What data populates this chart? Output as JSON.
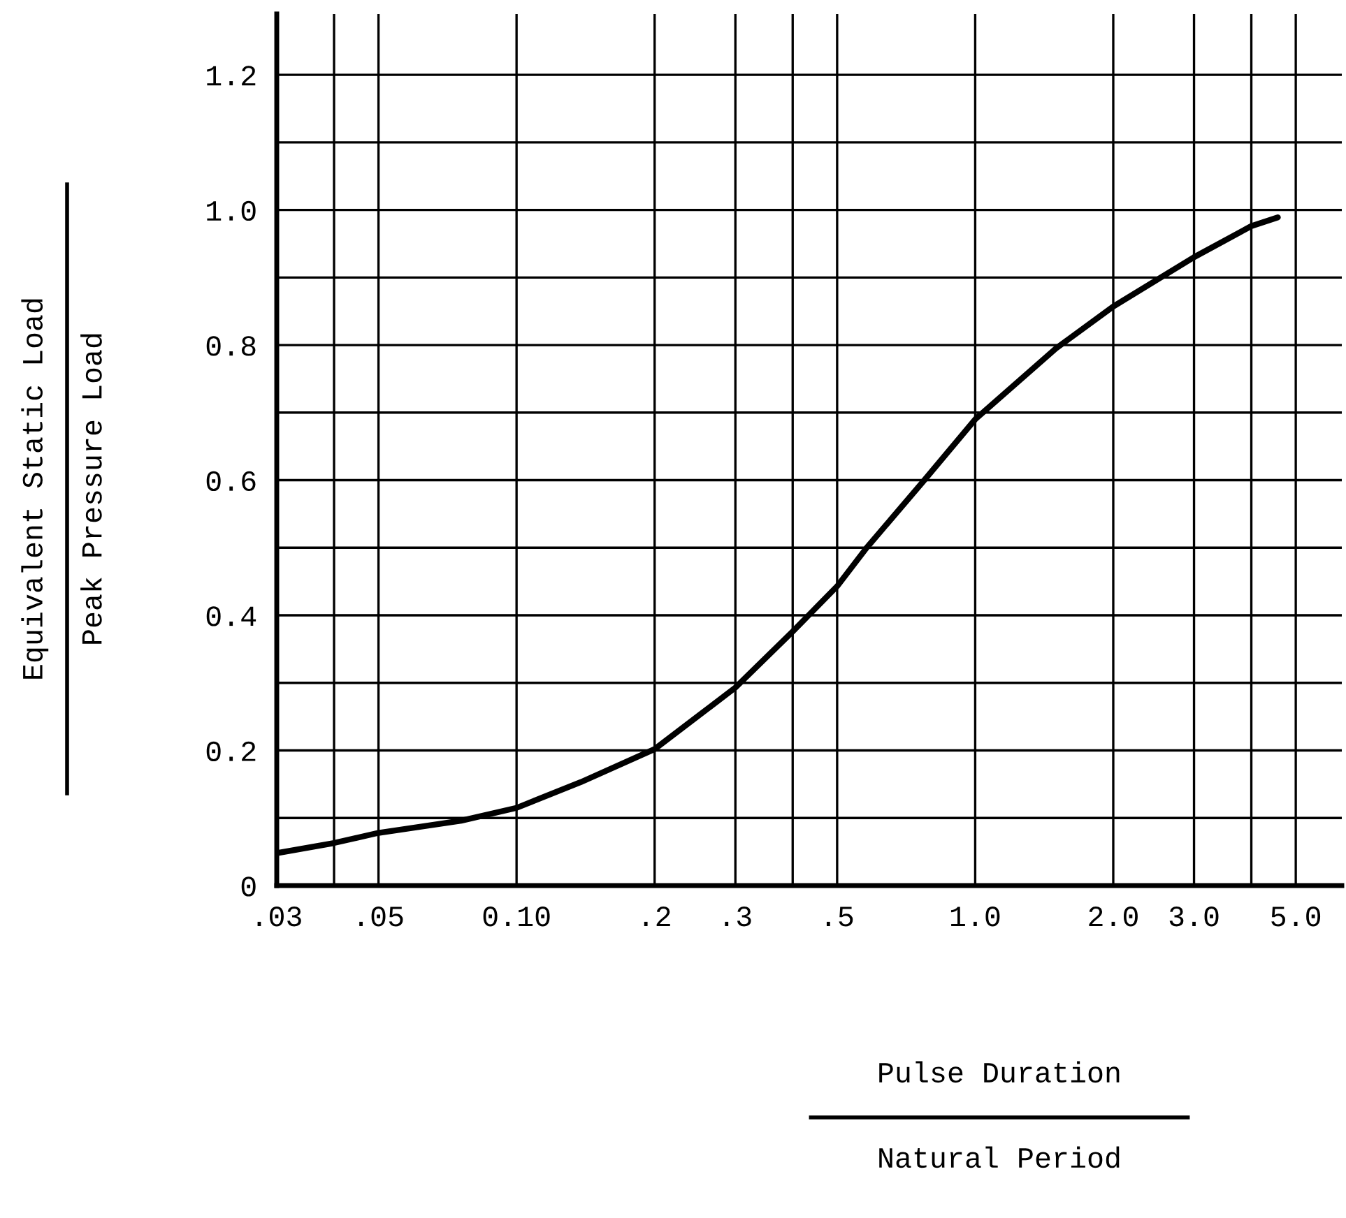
{
  "chart_data": {
    "type": "line",
    "xlabel": "Pulse Duration\nNatural Period",
    "ylabel": "Equivalent Static Load\nPeak Pressure Load",
    "log": "x",
    "x": [
      0.03,
      0.04,
      0.05,
      0.0757,
      0.1,
      0.138,
      0.2,
      0.3,
      0.4,
      0.5,
      0.58,
      0.77,
      1.0,
      1.5,
      2.0,
      3.0,
      4.0,
      4.57
    ],
    "series": [
      {
        "color": "#000000",
        "values": [
          0.048,
          0.063,
          0.078,
          0.096,
          0.115,
          0.153,
          0.202,
          0.293,
          0.376,
          0.443,
          0.5,
          0.598,
          0.69,
          0.795,
          0.857,
          0.93,
          0.976,
          0.989
        ]
      }
    ],
    "xlim": [
      0.03,
      6.3
    ],
    "ylim": [
      0,
      1.29
    ],
    "xticks": [
      {
        "value": 0.03,
        "label": ".03"
      },
      {
        "value": 0.04,
        "label": null
      },
      {
        "value": 0.05,
        "label": ".05"
      },
      {
        "value": 0.1,
        "label": "0.10"
      },
      {
        "value": 0.2,
        "label": ".2"
      },
      {
        "value": 0.3,
        "label": ".3"
      },
      {
        "value": 0.4,
        "label": null
      },
      {
        "value": 0.5,
        "label": ".5"
      },
      {
        "value": 1.0,
        "label": "1.0"
      },
      {
        "value": 2.0,
        "label": "2.0"
      },
      {
        "value": 3.0,
        "label": "3.0"
      },
      {
        "value": 4.0,
        "label": null
      },
      {
        "value": 5.0,
        "label": "5.0"
      }
    ],
    "yticks": [
      0,
      {
        "value": 0.1,
        "label": null
      },
      0.2,
      {
        "value": 0.3,
        "label": null
      },
      0.4,
      {
        "value": 0.5,
        "label": null
      },
      0.6,
      {
        "value": 0.7,
        "label": null
      },
      0.8,
      {
        "value": 0.9,
        "label": null
      },
      {
        "value": 1.0,
        "label": "1.0"
      },
      {
        "value": 1.1,
        "label": null
      },
      1.2
    ],
    "grid": true,
    "marker": "none",
    "line_style": "solid"
  }
}
